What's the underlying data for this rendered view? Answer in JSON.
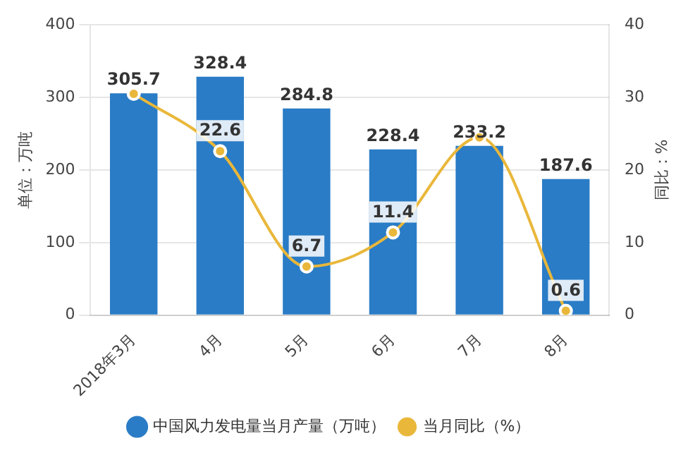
{
  "chart_data": {
    "type": "bar",
    "categories": [
      "2018年3月",
      "4月",
      "5月",
      "6月",
      "7月",
      "8月"
    ],
    "series": [
      {
        "name": "中国风力发电量当月产量（万吨）",
        "color": "#2a7cc6",
        "values": [
          305.7,
          328.4,
          284.8,
          228.4,
          233.2,
          187.6
        ]
      },
      {
        "name": "当月同比（%）",
        "type": "line",
        "axis": "y2",
        "color": "#e9b73a",
        "values": [
          30.5,
          22.6,
          6.7,
          11.4,
          24.5,
          0.6
        ],
        "value_labels": [
          null,
          "22.6",
          "6.7",
          "11.4",
          null,
          "0.6"
        ]
      }
    ],
    "ylabel": "单位：万吨",
    "y2label": "同比：%",
    "ylim": [
      0,
      400
    ],
    "yticks": [
      0,
      100,
      200,
      300,
      400
    ],
    "y2lim": [
      0,
      40
    ],
    "y2ticks": [
      0,
      10,
      20,
      30,
      40
    ],
    "grid": "y",
    "legend": "bottom",
    "marker": "circle",
    "data_labels": true
  }
}
